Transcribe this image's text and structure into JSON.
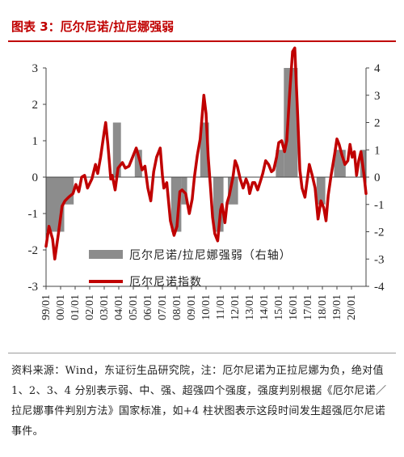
{
  "title": "图表 3：厄尔尼诺/拉尼娜强弱",
  "note": "资料来源：Wind，东证衍生品研究院，注：厄尔尼诺为正拉尼娜为负，绝对值 1、2、3、4 分别表示弱、中、强、超强四个强度，强度判别根据《厄尔尼诺／拉尼娜事件判别方法》国家标准，如+4 柱状图表示这段时间发生超强厄尔尼诺事件。",
  "colors": {
    "bar": "#8c8c8c",
    "line": "#c00000",
    "title": "#c00000"
  },
  "chart_data": {
    "type": "bar+line",
    "legend_placement": "bottom-center",
    "grid": false,
    "left_axis": {
      "range": [
        -3,
        3
      ],
      "ticks": [
        "3",
        "2",
        "1",
        "0",
        "-1",
        "-2",
        "-3"
      ]
    },
    "right_axis": {
      "range": [
        -4,
        4
      ],
      "ticks": [
        "4",
        "3",
        "2",
        "1",
        "0",
        "-1",
        "-2",
        "-3",
        "-4"
      ]
    },
    "x_range": [
      1999.0,
      2021.0
    ],
    "x_ticks": [
      "99/01",
      "00/01",
      "01/01",
      "02/01",
      "03/01",
      "04/01",
      "05/01",
      "06/01",
      "07/01",
      "08/01",
      "09/01",
      "10/01",
      "11/01",
      "12/01",
      "13/01",
      "14/01",
      "15/01",
      "16/01",
      "17/01",
      "18/01",
      "19/01",
      "20/01"
    ],
    "bars": {
      "name": "厄尔尼诺/拉尼娜强弱（右轴）",
      "axis": "right",
      "segments": [
        {
          "start": 1999.0,
          "end": 2000.25,
          "value": -2
        },
        {
          "start": 2000.25,
          "end": 2000.9,
          "value": -1
        },
        {
          "start": 2003.6,
          "end": 2004.15,
          "value": 2
        },
        {
          "start": 2005.1,
          "end": 2005.6,
          "value": 1
        },
        {
          "start": 2007.6,
          "end": 2008.3,
          "value": -2
        },
        {
          "start": 2008.3,
          "end": 2008.7,
          "value": -1
        },
        {
          "start": 2009.6,
          "end": 2010.2,
          "value": 2
        },
        {
          "start": 2010.5,
          "end": 2011.2,
          "value": -2
        },
        {
          "start": 2011.5,
          "end": 2012.2,
          "value": -1
        },
        {
          "start": 2014.8,
          "end": 2015.35,
          "value": 1
        },
        {
          "start": 2015.35,
          "end": 2016.3,
          "value": 4
        },
        {
          "start": 2017.6,
          "end": 2018.2,
          "value": -1
        },
        {
          "start": 2018.8,
          "end": 2019.6,
          "value": 1
        },
        {
          "start": 2020.6,
          "end": 2021.0,
          "value": 1
        }
      ]
    },
    "series": [
      {
        "name": "厄尔尼诺指数",
        "axis": "left",
        "points": [
          [
            1999.0,
            -1.9
          ],
          [
            1999.2,
            -1.35
          ],
          [
            1999.45,
            -1.7
          ],
          [
            1999.6,
            -2.25
          ],
          [
            1999.85,
            -1.55
          ],
          [
            2000.1,
            -0.8
          ],
          [
            2000.3,
            -0.65
          ],
          [
            2000.55,
            -0.55
          ],
          [
            2000.85,
            -0.45
          ],
          [
            2001.05,
            -0.2
          ],
          [
            2001.25,
            -0.4
          ],
          [
            2001.45,
            0.0
          ],
          [
            2001.65,
            0.05
          ],
          [
            2001.85,
            -0.3
          ],
          [
            2002.15,
            -0.05
          ],
          [
            2002.4,
            0.35
          ],
          [
            2002.55,
            0.1
          ],
          [
            2002.75,
            0.55
          ],
          [
            2003.0,
            1.25
          ],
          [
            2003.1,
            1.5
          ],
          [
            2003.25,
            0.9
          ],
          [
            2003.45,
            -0.05
          ],
          [
            2003.55,
            0.05
          ],
          [
            2003.75,
            -0.35
          ],
          [
            2003.95,
            0.25
          ],
          [
            2004.25,
            0.4
          ],
          [
            2004.45,
            0.25
          ],
          [
            2004.7,
            0.3
          ],
          [
            2004.95,
            0.55
          ],
          [
            2005.2,
            0.8
          ],
          [
            2005.45,
            0.45
          ],
          [
            2005.6,
            0.2
          ],
          [
            2005.8,
            0.3
          ],
          [
            2006.0,
            -0.3
          ],
          [
            2006.2,
            -0.65
          ],
          [
            2006.4,
            0.15
          ],
          [
            2006.6,
            0.55
          ],
          [
            2006.85,
            0.8
          ],
          [
            2007.0,
            0.05
          ],
          [
            2007.1,
            -0.3
          ],
          [
            2007.3,
            -0.15
          ],
          [
            2007.55,
            -1.2
          ],
          [
            2007.8,
            -1.6
          ],
          [
            2008.0,
            -1.35
          ],
          [
            2008.2,
            -0.4
          ],
          [
            2008.35,
            -0.35
          ],
          [
            2008.6,
            -0.45
          ],
          [
            2008.85,
            -1.0
          ],
          [
            2009.05,
            -0.6
          ],
          [
            2009.2,
            0.0
          ],
          [
            2009.4,
            0.6
          ],
          [
            2009.6,
            1.05
          ],
          [
            2009.85,
            2.25
          ],
          [
            2010.0,
            1.75
          ],
          [
            2010.15,
            0.55
          ],
          [
            2010.3,
            -0.25
          ],
          [
            2010.45,
            -1.1
          ],
          [
            2010.6,
            -1.55
          ],
          [
            2010.8,
            -1.75
          ],
          [
            2011.0,
            -0.9
          ],
          [
            2011.1,
            -0.75
          ],
          [
            2011.3,
            -1.25
          ],
          [
            2011.45,
            -0.7
          ],
          [
            2011.6,
            -0.5
          ],
          [
            2011.85,
            0.0
          ],
          [
            2012.0,
            0.45
          ],
          [
            2012.15,
            0.3
          ],
          [
            2012.35,
            -0.05
          ],
          [
            2012.55,
            -0.3
          ],
          [
            2012.75,
            -0.05
          ],
          [
            2012.9,
            -0.2
          ],
          [
            2013.0,
            -0.45
          ],
          [
            2013.2,
            -0.15
          ],
          [
            2013.35,
            -0.15
          ],
          [
            2013.55,
            -0.35
          ],
          [
            2013.75,
            -0.1
          ],
          [
            2013.9,
            0.1
          ],
          [
            2014.1,
            0.45
          ],
          [
            2014.3,
            0.35
          ],
          [
            2014.5,
            0.15
          ],
          [
            2014.65,
            0.2
          ],
          [
            2014.85,
            0.55
          ],
          [
            2015.0,
            0.95
          ],
          [
            2015.2,
            1.0
          ],
          [
            2015.4,
            0.7
          ],
          [
            2015.55,
            1.0
          ],
          [
            2015.75,
            2.3
          ],
          [
            2015.95,
            3.45
          ],
          [
            2016.1,
            3.55
          ],
          [
            2016.3,
            1.7
          ],
          [
            2016.45,
            0.2
          ],
          [
            2016.6,
            -0.3
          ],
          [
            2016.8,
            -0.55
          ],
          [
            2016.95,
            -0.1
          ],
          [
            2017.1,
            0.35
          ],
          [
            2017.3,
            0.05
          ],
          [
            2017.5,
            -0.3
          ],
          [
            2017.7,
            -1.15
          ],
          [
            2017.9,
            -0.65
          ],
          [
            2018.1,
            -0.85
          ],
          [
            2018.25,
            -1.2
          ],
          [
            2018.4,
            -0.5
          ],
          [
            2018.6,
            0.05
          ],
          [
            2018.85,
            0.65
          ],
          [
            2019.0,
            1.05
          ],
          [
            2019.15,
            0.9
          ],
          [
            2019.35,
            0.6
          ],
          [
            2019.55,
            0.35
          ],
          [
            2019.75,
            0.45
          ],
          [
            2019.9,
            0.9
          ],
          [
            2020.05,
            0.55
          ],
          [
            2020.2,
            0.7
          ],
          [
            2020.35,
            0.05
          ],
          [
            2020.5,
            0.45
          ],
          [
            2020.65,
            0.7
          ],
          [
            2020.85,
            0.1
          ],
          [
            2021.0,
            -0.45
          ]
        ]
      }
    ]
  }
}
